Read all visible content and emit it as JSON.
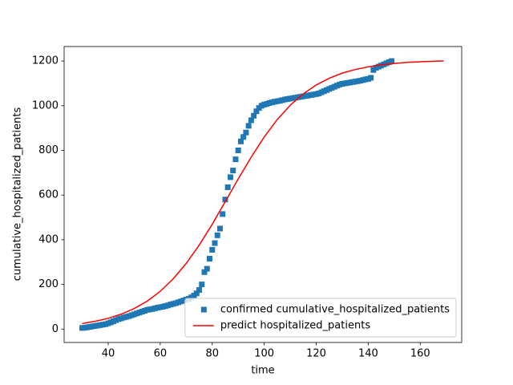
{
  "chart_data": {
    "type": "scatter-line",
    "xlabel": "time",
    "ylabel": "cumulative_hospitalized_patients",
    "xlim": [
      23.05,
      175.95
    ],
    "ylim": [
      -60,
      1265
    ],
    "xticks": [
      40,
      60,
      80,
      100,
      120,
      140,
      160
    ],
    "yticks": [
      0,
      200,
      400,
      600,
      800,
      1000,
      1200
    ],
    "legend": "lower right",
    "series": [
      {
        "name": "confirmed cumulative_hospitalized_patients",
        "color": "#1f77b4",
        "kind": "scatter",
        "x": [
          30,
          31,
          32,
          33,
          34,
          35,
          36,
          37,
          38,
          39,
          40,
          41,
          42,
          43,
          44,
          45,
          46,
          47,
          48,
          49,
          50,
          51,
          52,
          53,
          54,
          55,
          56,
          57,
          58,
          59,
          60,
          61,
          62,
          63,
          64,
          65,
          66,
          67,
          68,
          69,
          70,
          71,
          72,
          73,
          74,
          75,
          76,
          77,
          78,
          79,
          80,
          81,
          82,
          83,
          84,
          85,
          86,
          87,
          88,
          89,
          90,
          91,
          92,
          93,
          94,
          95,
          96,
          97,
          98,
          99,
          100,
          101,
          102,
          103,
          104,
          105,
          106,
          107,
          108,
          109,
          110,
          111,
          112,
          113,
          114,
          115,
          116,
          117,
          118,
          119,
          120,
          121,
          122,
          123,
          124,
          125,
          126,
          127,
          128,
          129,
          130,
          131,
          132,
          133,
          134,
          135,
          136,
          137,
          138,
          139,
          140,
          141,
          142,
          143,
          144,
          145,
          146,
          147,
          148,
          149
        ],
        "values": [
          5,
          6,
          8,
          10,
          12,
          14,
          16,
          18,
          20,
          22,
          26,
          30,
          35,
          40,
          45,
          48,
          52,
          55,
          58,
          62,
          66,
          70,
          74,
          78,
          82,
          86,
          88,
          90,
          93,
          96,
          98,
          100,
          103,
          106,
          110,
          113,
          116,
          120,
          124,
          128,
          132,
          136,
          142,
          150,
          160,
          175,
          200,
          255,
          270,
          315,
          355,
          385,
          420,
          450,
          515,
          580,
          635,
          680,
          710,
          760,
          800,
          840,
          860,
          880,
          910,
          935,
          955,
          975,
          990,
          1000,
          1005,
          1008,
          1012,
          1015,
          1018,
          1020,
          1022,
          1025,
          1028,
          1030,
          1032,
          1034,
          1036,
          1038,
          1040,
          1042,
          1044,
          1046,
          1048,
          1050,
          1052,
          1055,
          1060,
          1065,
          1070,
          1075,
          1080,
          1085,
          1090,
          1095,
          1098,
          1100,
          1102,
          1104,
          1106,
          1108,
          1110,
          1112,
          1115,
          1118,
          1120,
          1125,
          1160,
          1170,
          1175,
          1180,
          1185,
          1190,
          1195,
          1200
        ]
      },
      {
        "name": "predict hospitalized_patients",
        "color": "#ff0000",
        "kind": "line",
        "x": [
          30,
          35,
          40,
          45,
          50,
          55,
          60,
          65,
          70,
          75,
          80,
          85,
          90,
          95,
          100,
          105,
          110,
          115,
          120,
          125,
          130,
          135,
          140,
          145,
          150,
          155,
          160,
          165,
          169
        ],
        "values": [
          25,
          35,
          48,
          67,
          92,
          125,
          169,
          225,
          294,
          376,
          469,
          570,
          672,
          770,
          860,
          938,
          1002,
          1053,
          1093,
          1123,
          1146,
          1162,
          1174,
          1183,
          1189,
          1194,
          1197,
          1199,
          1201
        ]
      }
    ]
  }
}
